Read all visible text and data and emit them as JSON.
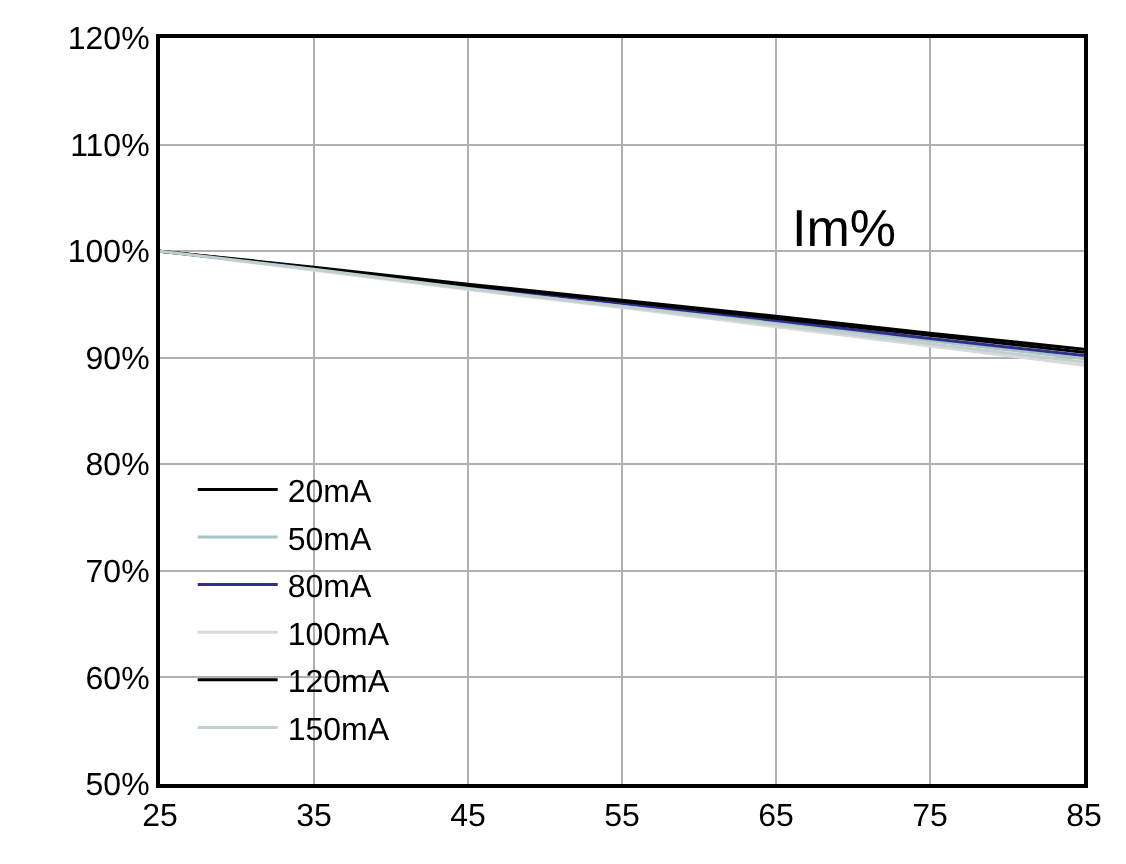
{
  "chart_data": {
    "type": "line",
    "x": [
      25,
      35,
      45,
      55,
      65,
      75,
      85
    ],
    "series": [
      {
        "name": "20mA",
        "color": "#000000",
        "values": [
          100,
          98.5,
          96.9,
          95.4,
          93.9,
          92.3,
          90.8
        ]
      },
      {
        "name": "50mA",
        "color": "#a7c4c6",
        "values": [
          100,
          98.3,
          96.6,
          95.0,
          93.3,
          91.6,
          89.9
        ]
      },
      {
        "name": "80mA",
        "color": "#2e2e8c",
        "values": [
          100,
          98.4,
          96.7,
          95.1,
          93.5,
          91.8,
          90.2
        ]
      },
      {
        "name": "100mA",
        "color": "#d9d9d9",
        "values": [
          100,
          98.2,
          96.4,
          94.7,
          92.9,
          91.1,
          89.3
        ]
      },
      {
        "name": "120mA",
        "color": "#000000",
        "values": [
          100,
          98.4,
          96.8,
          95.3,
          93.7,
          92.1,
          90.5
        ]
      },
      {
        "name": "150mA",
        "color": "#c2cfcf",
        "values": [
          100,
          98.3,
          96.5,
          94.8,
          93.1,
          91.3,
          89.6
        ]
      }
    ],
    "annotations": [
      "Im%"
    ],
    "xlim": [
      25,
      85
    ],
    "xticks": [
      25,
      35,
      45,
      55,
      65,
      75,
      85
    ],
    "ylim": [
      50,
      120
    ],
    "yticks": [
      {
        "value": 50,
        "label": "50%"
      },
      {
        "value": 60,
        "label": "60%"
      },
      {
        "value": 70,
        "label": "70%"
      },
      {
        "value": 80,
        "label": "80%"
      },
      {
        "value": 90,
        "label": "90%"
      },
      {
        "value": 100,
        "label": "100%"
      },
      {
        "value": 110,
        "label": "110%"
      },
      {
        "value": 120,
        "label": "120%"
      }
    ],
    "grid": true,
    "legend": "bottom left",
    "marker": "none",
    "line_style": "solid"
  }
}
